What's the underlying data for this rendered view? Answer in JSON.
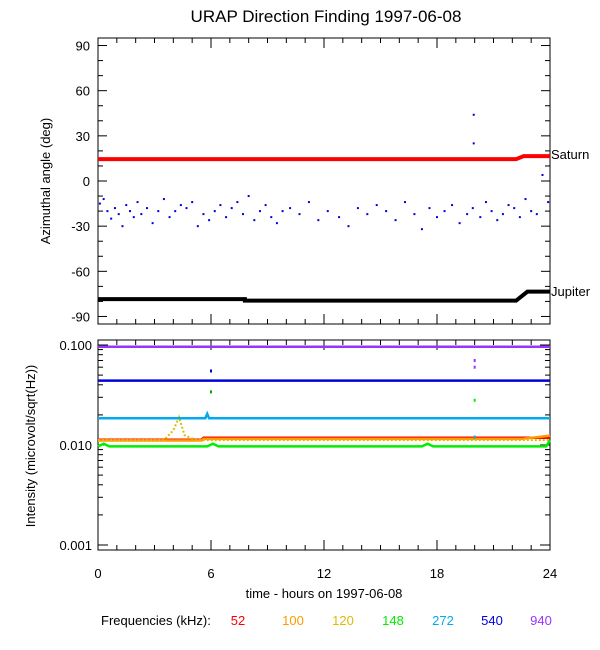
{
  "title": "URAP Direction Finding  1997-06-08",
  "chart_data": [
    {
      "type": "line",
      "panel": "top",
      "ylabel": "Azimuthal angle (deg)",
      "ylim": [
        -95,
        95
      ],
      "yticks": [
        90,
        60,
        30,
        0,
        -30,
        -60,
        -90
      ],
      "ytick_labels": [
        "90",
        "60",
        "30",
        "0",
        "-30",
        "-60",
        "-90"
      ],
      "xlim": [
        0,
        24
      ],
      "series": [
        {
          "name": "Saturn",
          "color": "#ff0000",
          "x": [
            0,
            22.2,
            22.6,
            24
          ],
          "y": [
            14.5,
            14.5,
            16.5,
            16.5
          ]
        },
        {
          "name": "Jupiter",
          "color": "#000000",
          "x": [
            0,
            7.8,
            7.8,
            22.2,
            22.8,
            24
          ],
          "y": [
            -78.5,
            -78.5,
            -79.5,
            -79.5,
            -73.5,
            -73.5
          ]
        }
      ],
      "scatter": {
        "color": "#0000dd",
        "x": [
          0.1,
          0.3,
          0.5,
          0.7,
          0.9,
          1.1,
          1.3,
          1.5,
          1.7,
          1.9,
          2.1,
          2.3,
          2.6,
          2.9,
          3.2,
          3.5,
          3.8,
          4.1,
          4.4,
          4.7,
          5.0,
          5.3,
          5.6,
          5.9,
          6.2,
          6.5,
          6.8,
          7.1,
          7.4,
          7.7,
          8.0,
          8.3,
          8.6,
          8.9,
          9.2,
          9.5,
          9.8,
          10.2,
          10.7,
          11.2,
          11.7,
          12.2,
          12.8,
          13.3,
          13.8,
          14.3,
          14.8,
          15.3,
          15.8,
          16.3,
          16.8,
          17.2,
          17.6,
          18.0,
          18.4,
          18.8,
          19.2,
          19.6,
          19.9,
          20.3,
          20.6,
          20.9,
          21.2,
          21.5,
          21.8,
          22.1,
          22.4,
          22.7,
          23.0,
          23.3,
          23.6,
          23.9,
          19.95,
          19.95
        ],
        "y": [
          -15,
          -12,
          -20,
          -25,
          -18,
          -22,
          -30,
          -16,
          -20,
          -24,
          -14,
          -22,
          -18,
          -28,
          -20,
          -12,
          -24,
          -20,
          -16,
          -18,
          -14,
          -30,
          -22,
          -26,
          -20,
          -16,
          -24,
          -18,
          -14,
          -22,
          -10,
          -26,
          -20,
          -16,
          -24,
          -28,
          -20,
          -18,
          -22,
          -14,
          -26,
          -20,
          -24,
          -30,
          -18,
          -22,
          -16,
          -20,
          -26,
          -14,
          -22,
          -32,
          -18,
          -24,
          -20,
          -16,
          -28,
          -22,
          -18,
          -24,
          -14,
          -20,
          -26,
          -22,
          -16,
          -18,
          -24,
          -12,
          -20,
          -22,
          4,
          -14,
          44,
          25
        ]
      }
    },
    {
      "type": "line",
      "panel": "bottom",
      "xlabel": "time - hours on 1997-06-08",
      "ylabel": "Intensity (microvolt/sqrt(Hz))",
      "yscale": "log",
      "ylim": [
        0.001,
        0.1
      ],
      "yticks": [
        0.1,
        0.01,
        0.001
      ],
      "ytick_labels": [
        "0.100",
        "0.010",
        "0.001"
      ],
      "xlim": [
        0,
        24
      ],
      "xticks": [
        0,
        6,
        12,
        18,
        24
      ],
      "xtick_labels": [
        "0",
        "6",
        "12",
        "18",
        "24"
      ],
      "legend_title": "Frequencies (kHz):",
      "series": [
        {
          "name": "52",
          "color": "#ff0000",
          "x": [
            0,
            5.5,
            5.6,
            24
          ],
          "y": [
            0.0113,
            0.0113,
            0.0118,
            0.0118
          ]
        },
        {
          "name": "100",
          "color": "#ff9900",
          "x": [
            0,
            5.5,
            5.6,
            22.5,
            24
          ],
          "y": [
            0.0111,
            0.0111,
            0.0115,
            0.0115,
            0.0124
          ]
        },
        {
          "name": "120",
          "color": "#ddbb00",
          "x": [
            0,
            3.5,
            4.0,
            4.3,
            4.6,
            5.2,
            24
          ],
          "y": [
            0.0112,
            0.0112,
            0.014,
            0.019,
            0.0125,
            0.0112,
            0.0112
          ]
        },
        {
          "name": "148",
          "color": "#00ee00",
          "x": [
            0,
            0.3,
            0.6,
            5.8,
            6.1,
            6.4,
            17.2,
            17.5,
            17.8,
            23.8,
            24
          ],
          "y": [
            0.0097,
            0.0103,
            0.0097,
            0.0097,
            0.0103,
            0.0097,
            0.0097,
            0.0103,
            0.0097,
            0.0097,
            0.0112
          ]
        },
        {
          "name": "272",
          "color": "#00aaee",
          "x": [
            0,
            5.7,
            5.8,
            5.9,
            24
          ],
          "y": [
            0.0185,
            0.0185,
            0.0205,
            0.0185,
            0.0185
          ]
        },
        {
          "name": "540",
          "color": "#0000dd",
          "x": [
            0,
            24
          ],
          "y": [
            0.044,
            0.044
          ]
        },
        {
          "name": "940",
          "color": "#9933ff",
          "x": [
            0,
            24
          ],
          "y": [
            0.096,
            0.096
          ]
        }
      ],
      "spikes": [
        {
          "x": 6.0,
          "y": 0.055,
          "color": "#0000dd"
        },
        {
          "x": 6.0,
          "y": 0.034,
          "color": "#00aa00"
        },
        {
          "x": 20.0,
          "y": 0.07,
          "color": "#9933ff"
        },
        {
          "x": 20.0,
          "y": 0.06,
          "color": "#9933ff"
        },
        {
          "x": 20.0,
          "y": 0.028,
          "color": "#00ee00"
        },
        {
          "x": 20.0,
          "y": 0.012,
          "color": "#00aaee"
        }
      ]
    }
  ]
}
